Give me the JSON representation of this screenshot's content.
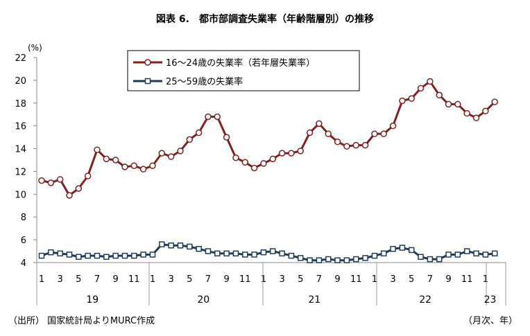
{
  "chart_data": {
    "type": "line",
    "title": "図表 6.　都市部調査失業率（年齢階層別）の推移",
    "ylabel": "(%)",
    "ylim": [
      4,
      22
    ],
    "yticks": [
      4,
      6,
      8,
      10,
      12,
      14,
      16,
      18,
      20,
      22
    ],
    "grid": false,
    "legend_position": "top-center",
    "month_tick_labels": [
      "1",
      "3",
      "5",
      "7",
      "9",
      "11",
      "1",
      "3",
      "5",
      "7",
      "9",
      "11",
      "1",
      "3",
      "5",
      "7",
      "9",
      "11",
      "1",
      "3",
      "5",
      "7",
      "9",
      "11",
      "1"
    ],
    "year_labels": [
      "19",
      "20",
      "21",
      "22",
      "23"
    ],
    "x": [
      "2019-01",
      "2019-02",
      "2019-03",
      "2019-04",
      "2019-05",
      "2019-06",
      "2019-07",
      "2019-08",
      "2019-09",
      "2019-10",
      "2019-11",
      "2019-12",
      "2020-01",
      "2020-02",
      "2020-03",
      "2020-04",
      "2020-05",
      "2020-06",
      "2020-07",
      "2020-08",
      "2020-09",
      "2020-10",
      "2020-11",
      "2020-12",
      "2021-01",
      "2021-02",
      "2021-03",
      "2021-04",
      "2021-05",
      "2021-06",
      "2021-07",
      "2021-08",
      "2021-09",
      "2021-10",
      "2021-11",
      "2021-12",
      "2022-01",
      "2022-02",
      "2022-03",
      "2022-04",
      "2022-05",
      "2022-06",
      "2022-07",
      "2022-08",
      "2022-09",
      "2022-10",
      "2022-11",
      "2022-12",
      "2023-01",
      "2023-02"
    ],
    "series": [
      {
        "name": "16～24歳の失業率（若年層失業率）",
        "color": "#7f1f1f",
        "marker": "circle",
        "values": [
          11.2,
          11.0,
          11.3,
          9.9,
          10.5,
          11.6,
          13.9,
          13.1,
          13.0,
          12.4,
          12.5,
          12.2,
          12.5,
          13.6,
          13.3,
          13.8,
          14.8,
          15.4,
          16.8,
          16.8,
          15.0,
          13.2,
          12.8,
          12.3,
          12.7,
          13.1,
          13.6,
          13.6,
          13.8,
          15.4,
          16.2,
          15.3,
          14.6,
          14.2,
          14.3,
          14.3,
          15.3,
          15.3,
          16.0,
          18.2,
          18.4,
          19.3,
          19.9,
          18.7,
          17.9,
          17.9,
          17.1,
          16.7,
          17.3,
          18.1
        ]
      },
      {
        "name": "25～59歳の失業率",
        "color": "#1f3a5f",
        "marker": "square",
        "values": [
          4.6,
          4.9,
          4.8,
          4.7,
          4.5,
          4.6,
          4.6,
          4.5,
          4.6,
          4.6,
          4.6,
          4.7,
          4.7,
          5.6,
          5.5,
          5.5,
          5.4,
          5.2,
          5.0,
          4.8,
          4.8,
          4.8,
          4.7,
          4.7,
          4.9,
          5.0,
          4.8,
          4.6,
          4.4,
          4.2,
          4.2,
          4.3,
          4.2,
          4.2,
          4.3,
          4.4,
          4.6,
          4.8,
          5.2,
          5.3,
          5.1,
          4.5,
          4.3,
          4.3,
          4.7,
          4.7,
          5.0,
          4.8,
          4.7,
          4.8
        ]
      }
    ]
  },
  "footer": {
    "source": "（出所） 国家統計局よりMURC作成",
    "axis_note": "（月次、年）"
  }
}
